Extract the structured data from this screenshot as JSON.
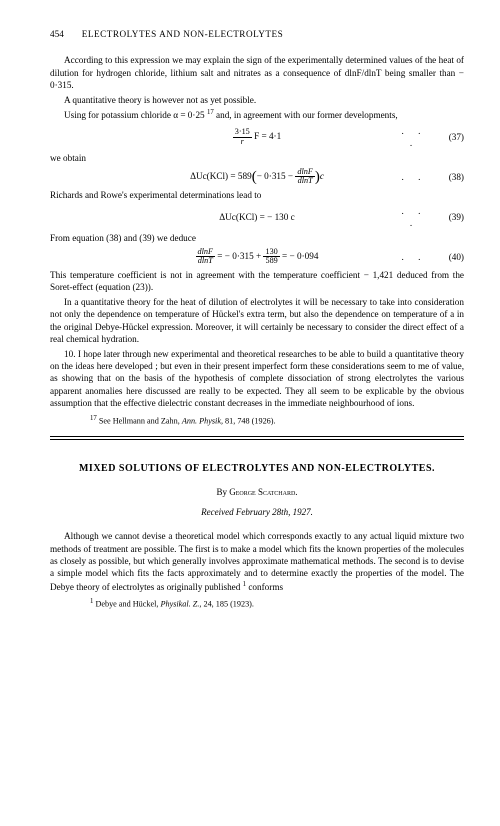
{
  "page_number": "454",
  "running_title": "ELECTROLYTES AND NON-ELECTROLYTES",
  "para1": "According to this expression we may explain the sign of the experimentally determined values of the heat of dilution for hydrogen chloride, lithium salt and nitrates as a consequence of dlnF/dlnT being smaller than − 0·315.",
  "para2": "A quantitative theory is however not as yet possible.",
  "para3a": "Using for potassium chloride α = 0·25 ",
  "para3_sup": "17",
  "para3b": " and, in agreement with our former developments,",
  "eq37": {
    "lhs": "",
    "expr": "(3·15 / r) F = 4·1",
    "num": "(37)"
  },
  "line_we_obtain": "we obtain",
  "eq38": {
    "prefix": "ΔUc(KCl) = 589",
    "inner_a": "− 0·315 −",
    "frac_n": "dlnF",
    "frac_d": "dlnT",
    "suffix": "c",
    "num": "(38)"
  },
  "para4": "Richards and Rowe's experimental determinations lead to",
  "eq39": {
    "expr": "ΔUc(KCl) = − 130 c",
    "num": "(39)"
  },
  "para5": "From equation (38) and (39) we deduce",
  "eq40": {
    "frac1_n": "dlnF",
    "frac1_d": "dlnT",
    "mid": " = − 0·315 + ",
    "frac2_n": "130",
    "frac2_d": "589",
    "tail": " = − 0·094",
    "num": "(40)"
  },
  "para6": "This temperature coefficient is not in agreement with the temperature coefficient − 1,421 deduced from the Soret-effect (equation (23)).",
  "para7": "In a quantitative theory for the heat of dilution of electrolytes it will be necessary to take into consideration not only the dependence on temperature of Hückel's extra term, but also the dependence on temperature of a in the original Debye-Hückel expression. Moreover, it will certainly be necessary to consider the direct effect of a real chemical hydration.",
  "para8": "10. I hope later through new experimental and theoretical researches to be able to build a quantitative theory on the ideas here developed ; but even in their present imperfect form these considerations seem to me of value, as showing that on the basis of the hypothesis of complete dissociation of strong electrolytes the various apparent anomalies here discussed are really to be expected. They all seem to be explicable by the obvious assumption that the effective dielectric constant decreases in the immediate neighbourhood of ions.",
  "footnote17_sup": "17",
  "footnote17_a": " See Hellmann and Zahn, ",
  "footnote17_it": "Ann. Physik,",
  "footnote17_b": " 81, 748 (1926).",
  "title2": "MIXED SOLUTIONS OF ELECTROLYTES AND NON-ELECTROLYTES.",
  "byline_by": "By ",
  "byline_name": "George Scatchard.",
  "received": "Received February 28th, 1927.",
  "para9a": "Although we cannot devise a theoretical model which corresponds exactly to any actual liquid mixture two methods of treatment are possible. The first is to make a model which fits the known properties of the molecules as closely as possible, but which generally involves approximate mathematical methods. The second is to devise a simple model which fits the facts approximately and to determine exactly the properties of the model. The Debye theory of electrolytes as originally published ",
  "para9_sup": "1",
  "para9b": " conforms",
  "footnote1_sup": "1",
  "footnote1_a": " Debye and Hückel, ",
  "footnote1_it": "Physikal. Z.,",
  "footnote1_b": " 24, 185 (1923).",
  "dots": ". . .",
  "dots2": ". ."
}
